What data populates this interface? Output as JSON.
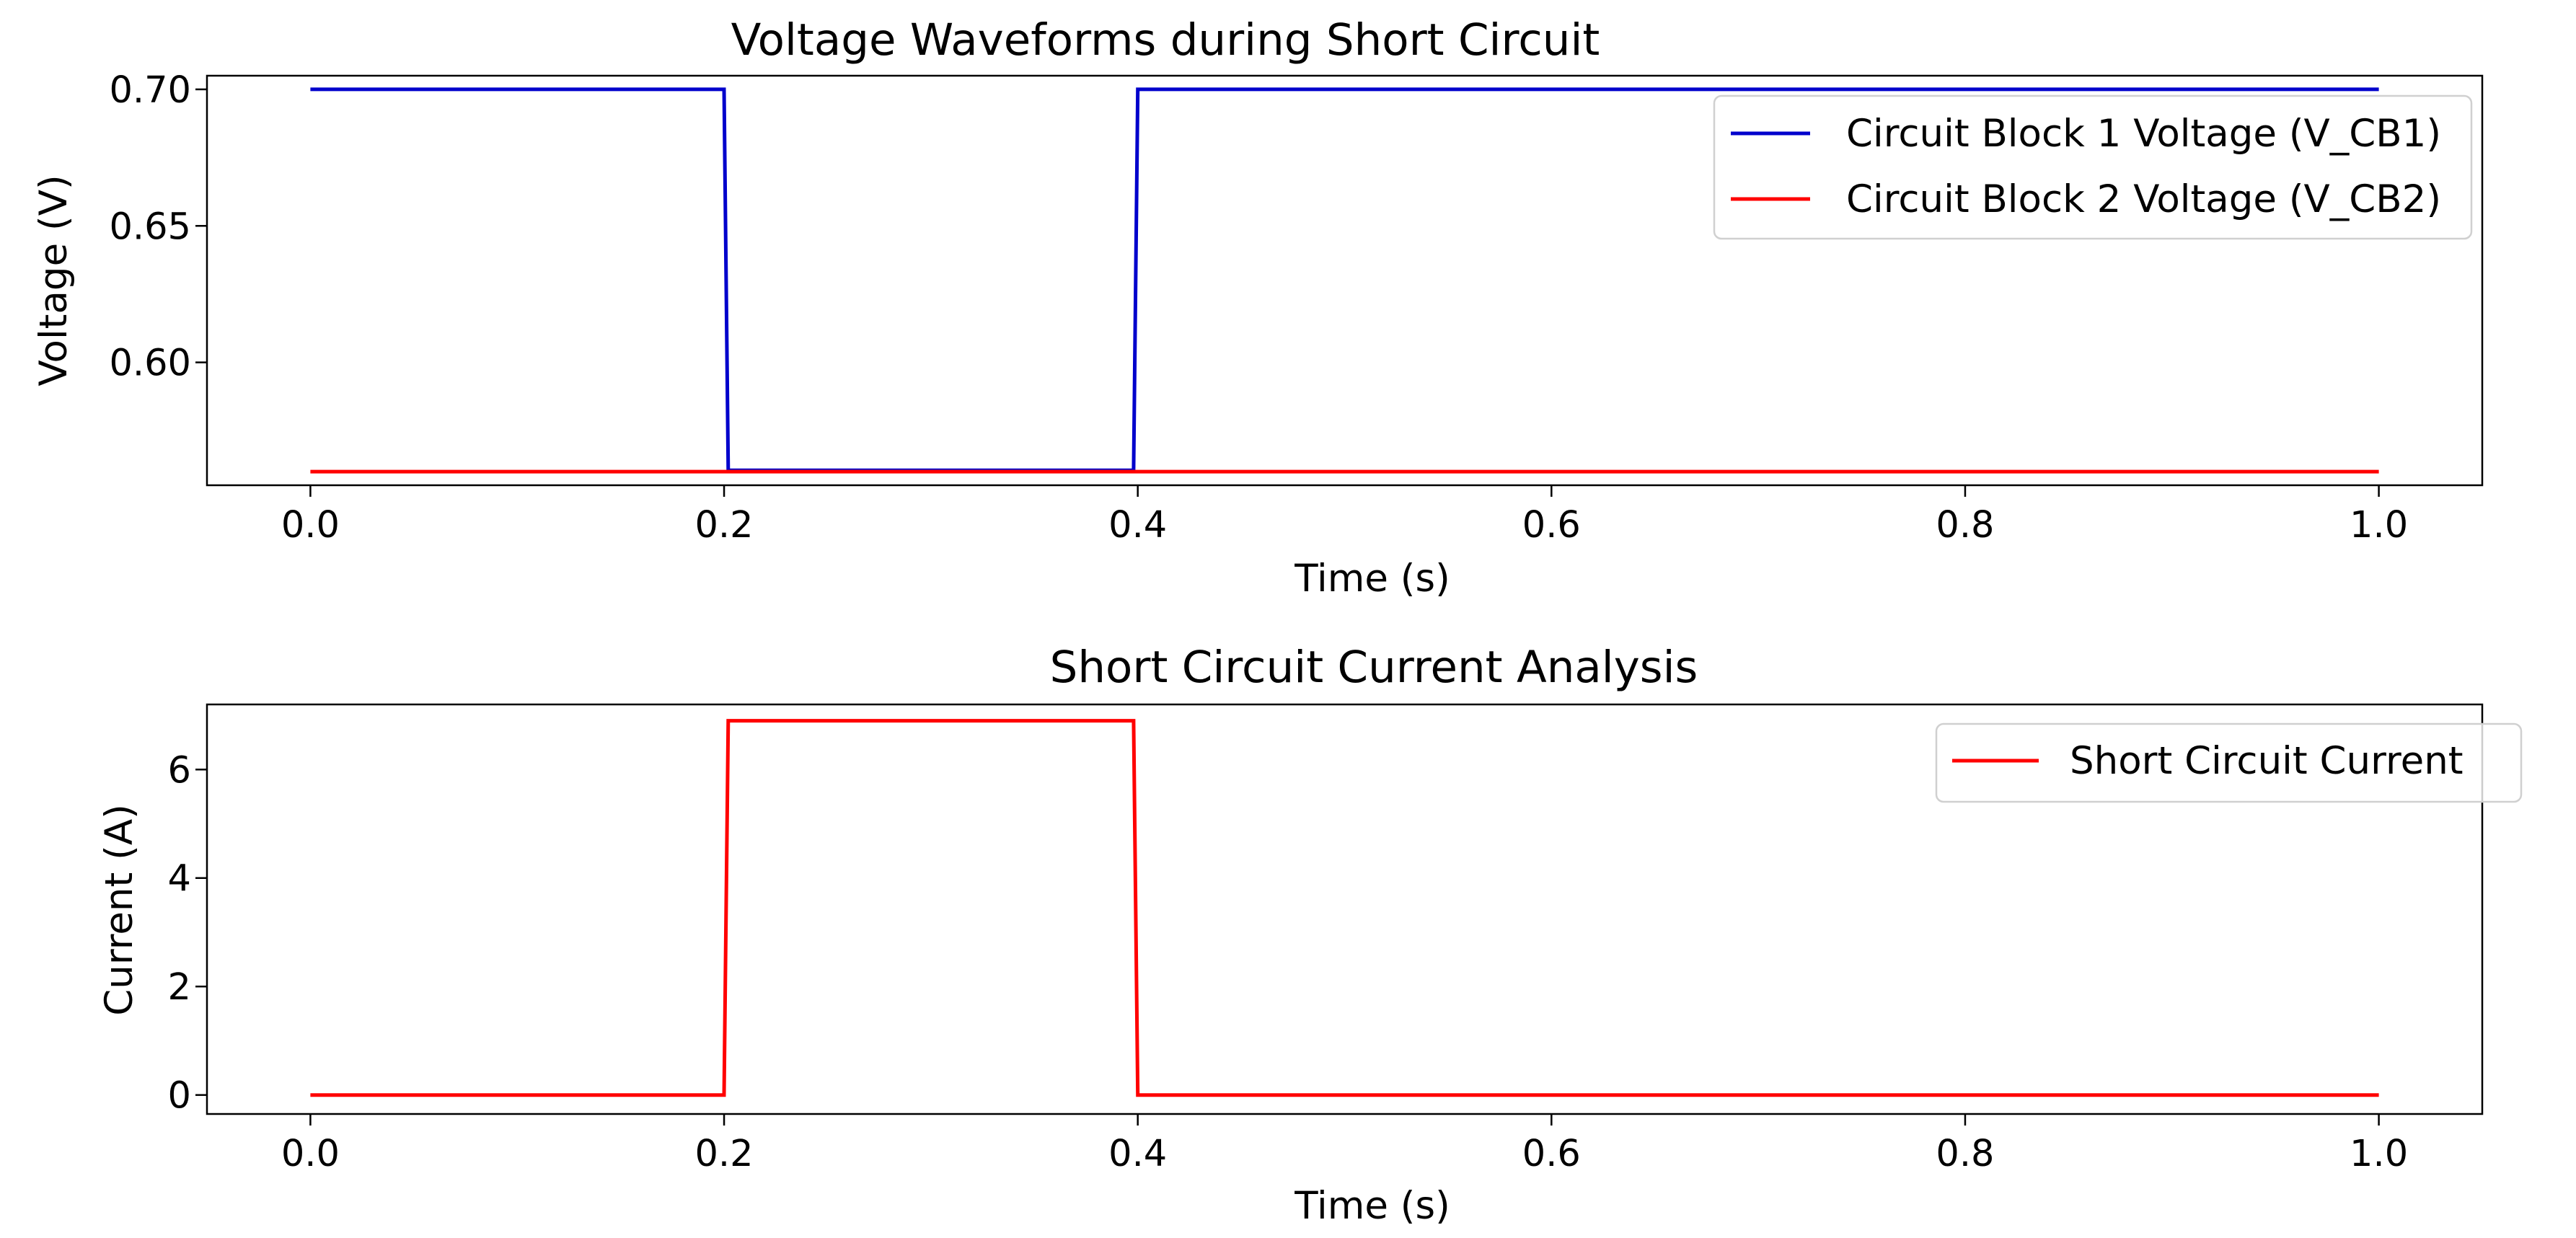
{
  "chart_data": [
    {
      "type": "line",
      "title": "Voltage Waveforms during Short Circuit",
      "xlabel": "Time (s)",
      "ylabel": "Voltage (V)",
      "xlim": [
        -0.05,
        1.05
      ],
      "ylim": [
        0.555,
        0.705
      ],
      "xticks": [
        0.0,
        0.2,
        0.4,
        0.6,
        0.8,
        1.0
      ],
      "xtick_labels": [
        "0.0",
        "0.2",
        "0.4",
        "0.6",
        "0.8",
        "1.0"
      ],
      "yticks": [
        0.6,
        0.65,
        0.7
      ],
      "ytick_labels": [
        "0.60",
        "0.65",
        "0.70"
      ],
      "grid": false,
      "legend_position": "top-right",
      "series": [
        {
          "name": "Circuit Block 1 Voltage (V_CB1)",
          "color": "#0000cc",
          "x": [
            0.0,
            0.2,
            0.202,
            0.398,
            0.4,
            1.0
          ],
          "y": [
            0.7,
            0.7,
            0.5605,
            0.5605,
            0.7,
            0.7
          ]
        },
        {
          "name": "Circuit Block 2 Voltage (V_CB2)",
          "color": "#ff0000",
          "x": [
            0.0,
            1.0
          ],
          "y": [
            0.56,
            0.56
          ]
        }
      ]
    },
    {
      "type": "line",
      "title": "Short Circuit Current Analysis",
      "xlabel": "Time (s)",
      "ylabel": "Current (A)",
      "xlim": [
        -0.05,
        1.05
      ],
      "ylim": [
        -0.35,
        7.2
      ],
      "xticks": [
        0.0,
        0.2,
        0.4,
        0.6,
        0.8,
        1.0
      ],
      "xtick_labels": [
        "0.0",
        "0.2",
        "0.4",
        "0.6",
        "0.8",
        "1.0"
      ],
      "yticks": [
        0,
        2,
        4,
        6
      ],
      "ytick_labels": [
        "0",
        "2",
        "4",
        "6"
      ],
      "grid": false,
      "legend_position": "top-right",
      "series": [
        {
          "name": "Short Circuit Current",
          "color": "#ff0000",
          "x": [
            0.0,
            0.2,
            0.202,
            0.398,
            0.4,
            1.0
          ],
          "y": [
            0.0,
            0.0,
            6.9,
            6.9,
            0.0,
            0.0
          ]
        }
      ]
    }
  ]
}
